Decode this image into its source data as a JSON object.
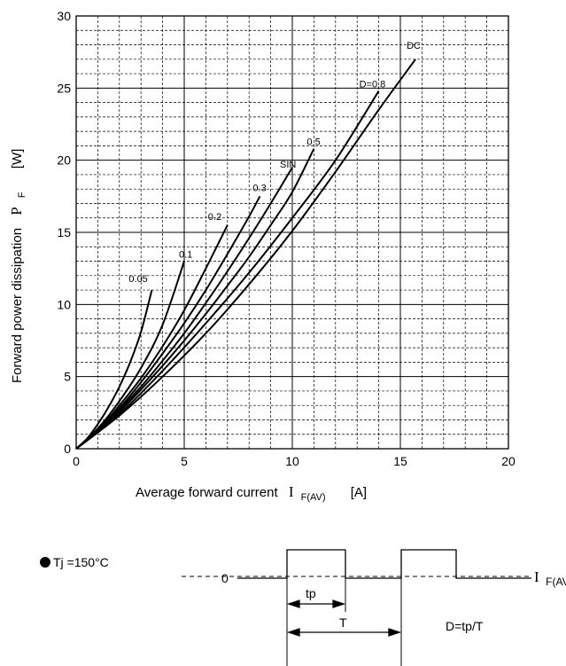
{
  "chart_data": {
    "type": "line",
    "title": "",
    "xlabel": "Average forward current",
    "xlabel_symbol": "I",
    "xlabel_subscript": "F(AV)",
    "xlabel_unit": "[A]",
    "ylabel": "Forward power dissipation",
    "ylabel_symbol": "P",
    "ylabel_subscript": "F",
    "ylabel_unit": "[W]",
    "xlim": [
      0,
      20
    ],
    "ylim": [
      0,
      30
    ],
    "x_ticks": [
      "0",
      "5",
      "10",
      "20",
      "15"
    ],
    "x_tick_values": [
      0,
      5,
      10,
      20,
      15
    ],
    "y_ticks": [
      "0",
      "5",
      "10",
      "15",
      "20",
      "25",
      "30"
    ],
    "y_tick_values": [
      0,
      5,
      10,
      15,
      20,
      25,
      30
    ],
    "grid": "major solid, minor dashed",
    "series": [
      {
        "name": "0.05",
        "points": [
          [
            0,
            0
          ],
          [
            0.5,
            0.7
          ],
          [
            1,
            1.7
          ],
          [
            1.5,
            2.9
          ],
          [
            2,
            4.3
          ],
          [
            2.5,
            6.0
          ],
          [
            3,
            8.1
          ],
          [
            3.5,
            11.0
          ]
        ]
      },
      {
        "name": "0.1",
        "points": [
          [
            0,
            0
          ],
          [
            1,
            1.4
          ],
          [
            2,
            3.3
          ],
          [
            3,
            5.6
          ],
          [
            4,
            8.6
          ],
          [
            5,
            13.0
          ]
        ]
      },
      {
        "name": "0.2",
        "points": [
          [
            0,
            0
          ],
          [
            1,
            1.3
          ],
          [
            2,
            3.0
          ],
          [
            3,
            4.9
          ],
          [
            4,
            7.1
          ],
          [
            5,
            9.6
          ],
          [
            6,
            12.5
          ],
          [
            7,
            15.5
          ]
        ]
      },
      {
        "name": "0.3",
        "points": [
          [
            0,
            0
          ],
          [
            1,
            1.25
          ],
          [
            2,
            2.8
          ],
          [
            3,
            4.6
          ],
          [
            4,
            6.6
          ],
          [
            5,
            8.7
          ],
          [
            6,
            11.0
          ],
          [
            7,
            13.5
          ],
          [
            8,
            16.1
          ],
          [
            8.5,
            17.5
          ]
        ]
      },
      {
        "name": "SIN",
        "points": [
          [
            0,
            0
          ],
          [
            1,
            1.2
          ],
          [
            2,
            2.7
          ],
          [
            3,
            4.3
          ],
          [
            4,
            6.1
          ],
          [
            5,
            8.0
          ],
          [
            6,
            10.1
          ],
          [
            7,
            12.3
          ],
          [
            8,
            14.6
          ],
          [
            9,
            17.0
          ],
          [
            10,
            19.5
          ]
        ]
      },
      {
        "name": "0.5",
        "points": [
          [
            0,
            0
          ],
          [
            1,
            1.15
          ],
          [
            2,
            2.55
          ],
          [
            3,
            4.1
          ],
          [
            4,
            5.75
          ],
          [
            5,
            7.5
          ],
          [
            6,
            9.35
          ],
          [
            7,
            11.3
          ],
          [
            8,
            13.3
          ],
          [
            9,
            15.5
          ],
          [
            10,
            17.8
          ],
          [
            11,
            20.8
          ]
        ]
      },
      {
        "name": "D=0.8",
        "points": [
          [
            0,
            0
          ],
          [
            2,
            2.4
          ],
          [
            4,
            5.4
          ],
          [
            6,
            8.7
          ],
          [
            8,
            12.2
          ],
          [
            10,
            16.0
          ],
          [
            12,
            20.0
          ],
          [
            14,
            24.8
          ]
        ]
      },
      {
        "name": "DC",
        "points": [
          [
            0,
            0
          ],
          [
            2,
            2.3
          ],
          [
            4,
            5.0
          ],
          [
            6,
            8.0
          ],
          [
            8,
            11.4
          ],
          [
            10,
            15.1
          ],
          [
            12,
            19.2
          ],
          [
            14,
            23.5
          ],
          [
            15.7,
            27.0
          ]
        ]
      }
    ]
  },
  "footer": {
    "tj_label": "Tj =150°C",
    "zero_label": "0",
    "current_symbol": "I",
    "current_subscript": "F(AV)",
    "tp_label": "tp",
    "period_label": "T",
    "duty_formula": "D=tp/T"
  }
}
